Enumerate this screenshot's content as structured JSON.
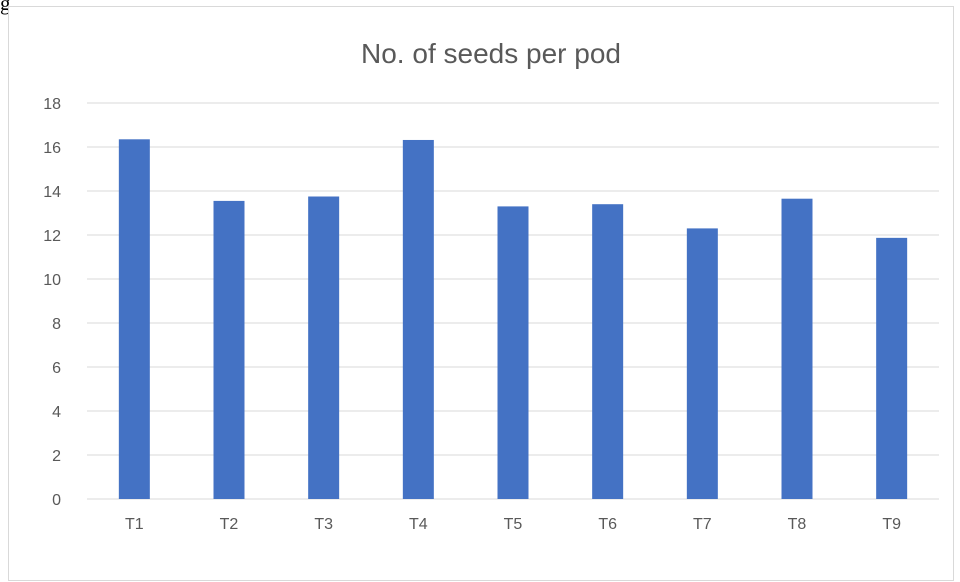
{
  "document": {
    "top_text": "g"
  },
  "chart_data": {
    "type": "bar",
    "title": "No. of seeds per pod",
    "xlabel": "",
    "ylabel": "",
    "categories": [
      "T1",
      "T2",
      "T3",
      "T4",
      "T5",
      "T6",
      "T7",
      "T8",
      "T9"
    ],
    "values": [
      16.35,
      13.55,
      13.75,
      16.32,
      13.3,
      13.4,
      12.3,
      13.65,
      11.87
    ],
    "ylim": [
      0,
      18
    ],
    "yticks": [
      0,
      2,
      4,
      6,
      8,
      10,
      12,
      14,
      16,
      18
    ],
    "grid": true,
    "legend": "none",
    "bar_color": "#4472c4",
    "grid_color": "#d9d9d9",
    "text_color": "#595959"
  }
}
